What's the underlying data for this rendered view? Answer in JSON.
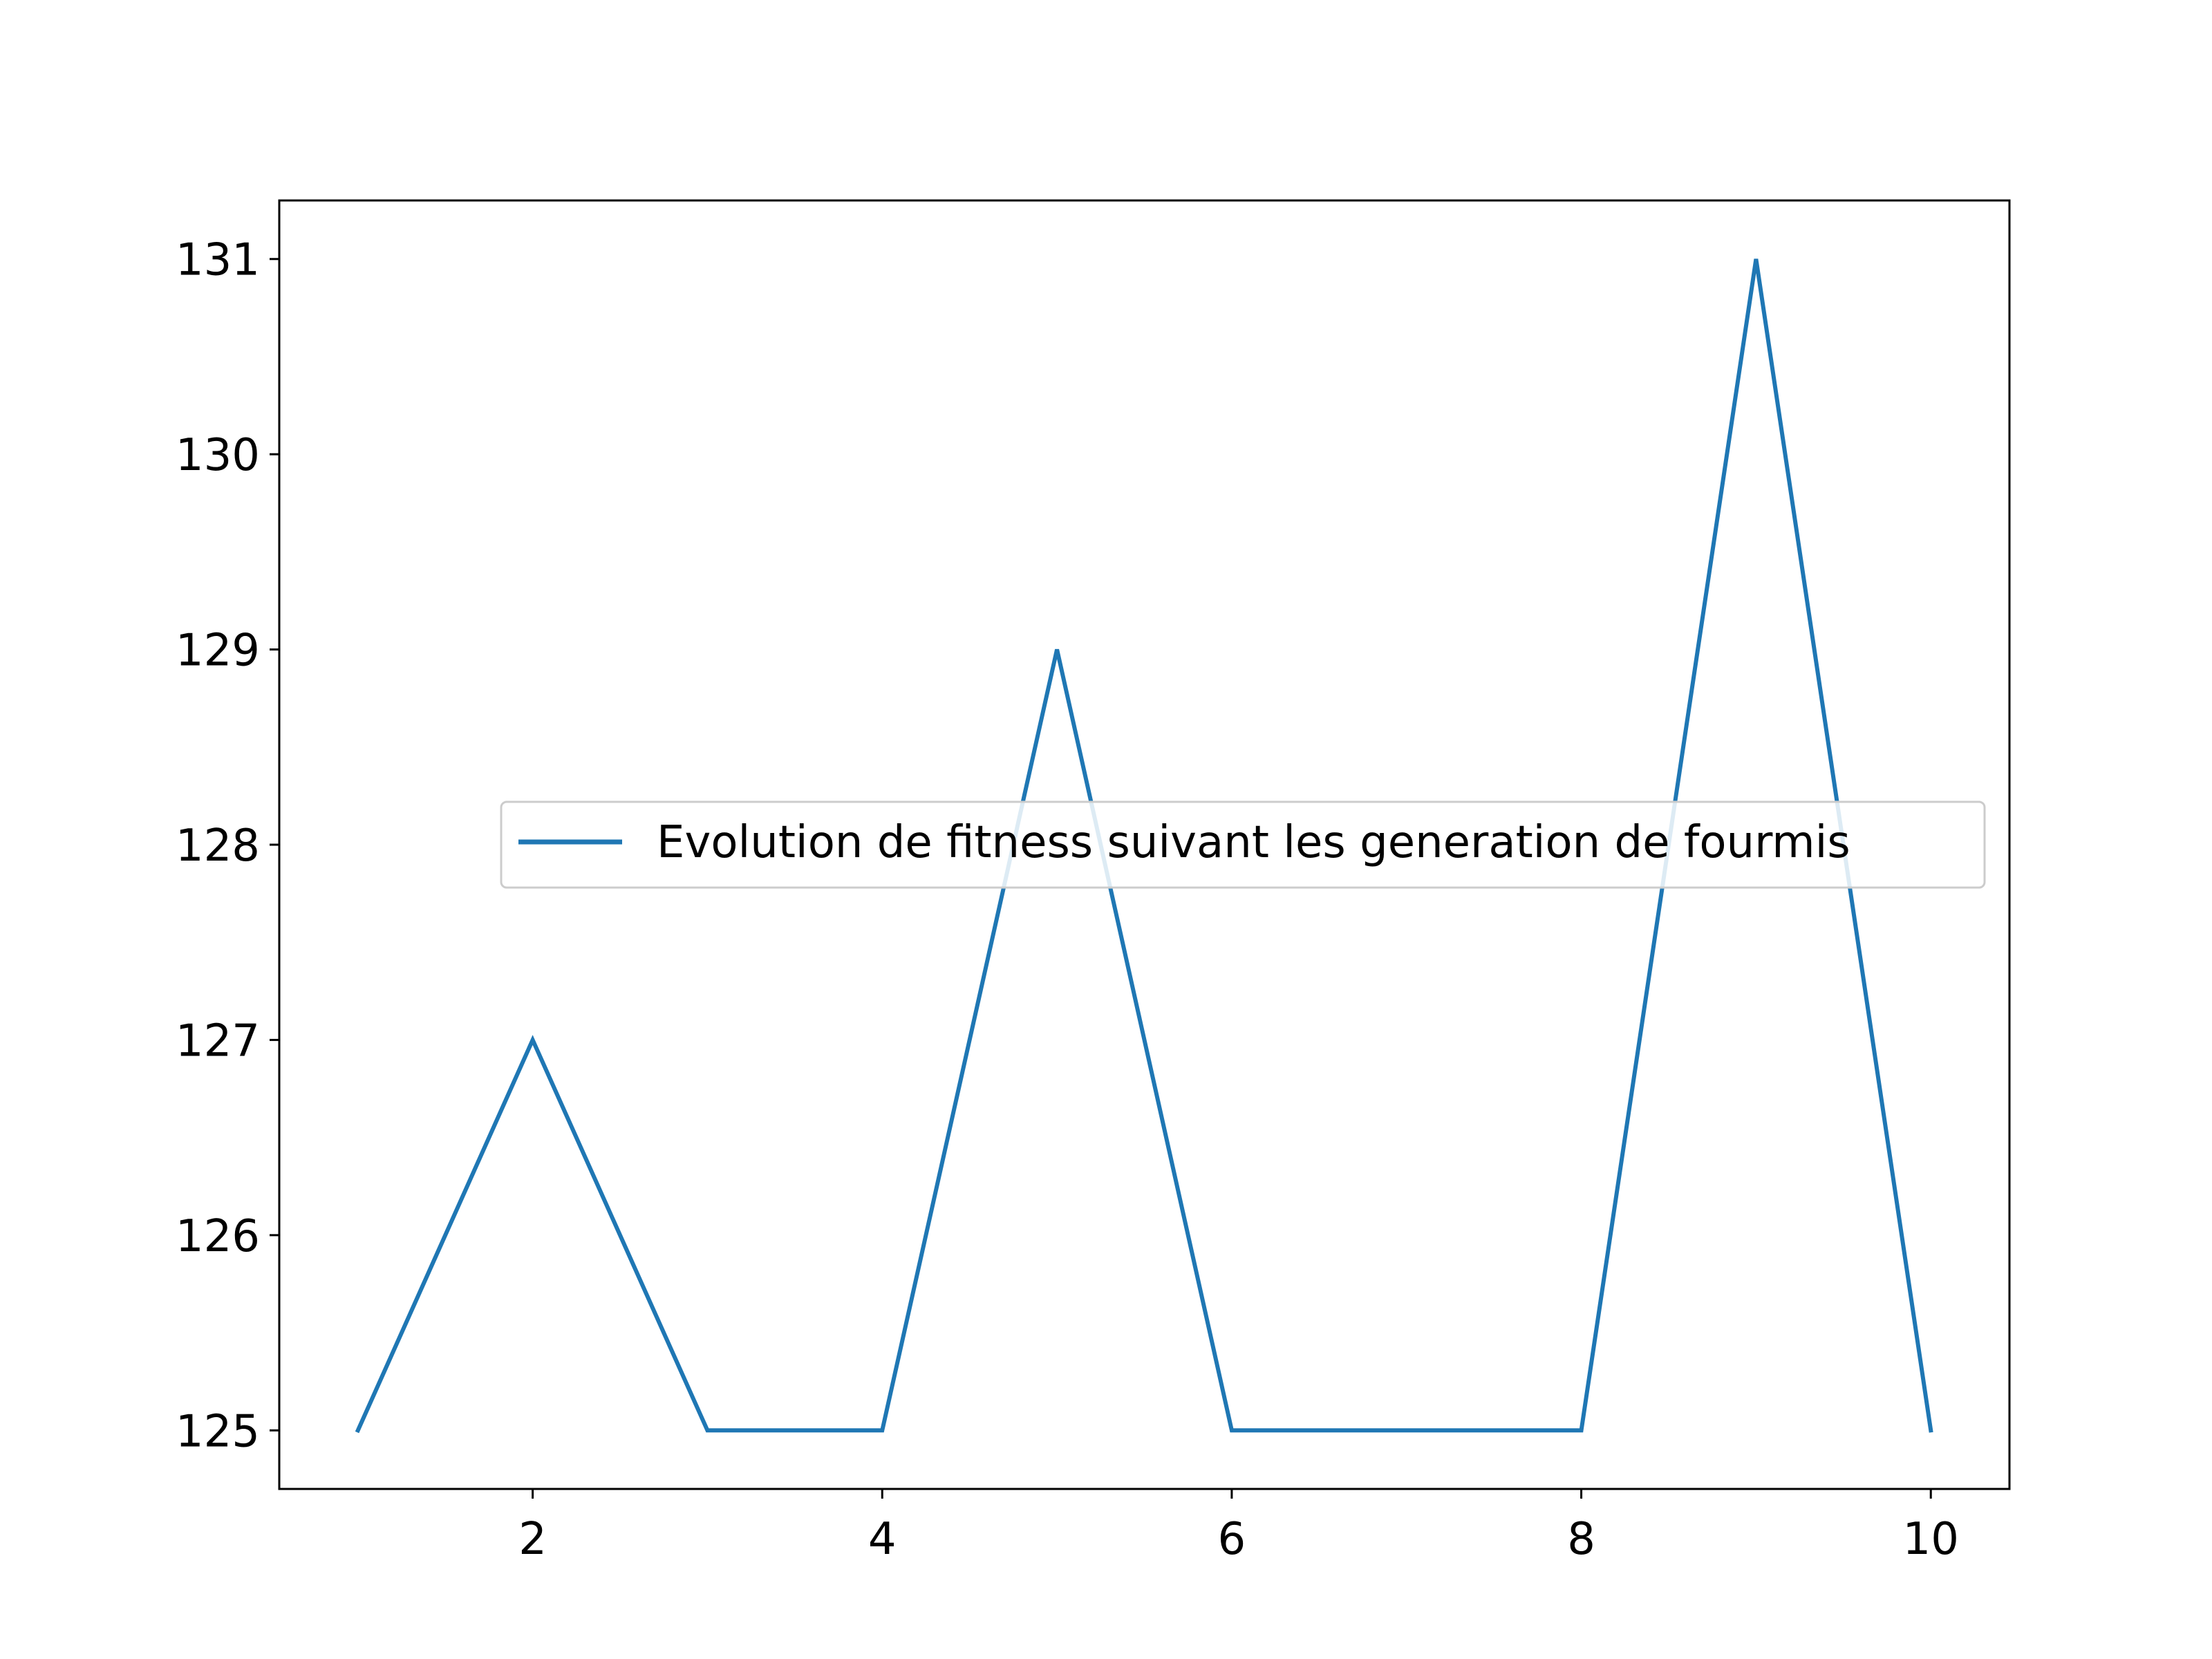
{
  "chart_data": {
    "type": "line",
    "title": "",
    "xlabel": "",
    "ylabel": "",
    "xlim": [
      0.55,
      10.45
    ],
    "ylim": [
      124.7,
      131.3
    ],
    "xticks": [
      2,
      4,
      6,
      8,
      10
    ],
    "xtick_labels": [
      "2",
      "4",
      "6",
      "8",
      "10"
    ],
    "yticks": [
      125,
      126,
      127,
      128,
      129,
      130,
      131
    ],
    "ytick_labels": [
      "125",
      "126",
      "127",
      "128",
      "129",
      "130",
      "131"
    ],
    "grid": false,
    "legend_position": "center-right",
    "series": [
      {
        "name": "Evolution de fitness suivant les generation de fourmis",
        "color": "#1f77b4",
        "x": [
          1,
          2,
          3,
          4,
          5,
          6,
          7,
          8,
          9,
          10
        ],
        "y": [
          125,
          127,
          125,
          125,
          129,
          125,
          125,
          125,
          131,
          125
        ]
      }
    ]
  }
}
